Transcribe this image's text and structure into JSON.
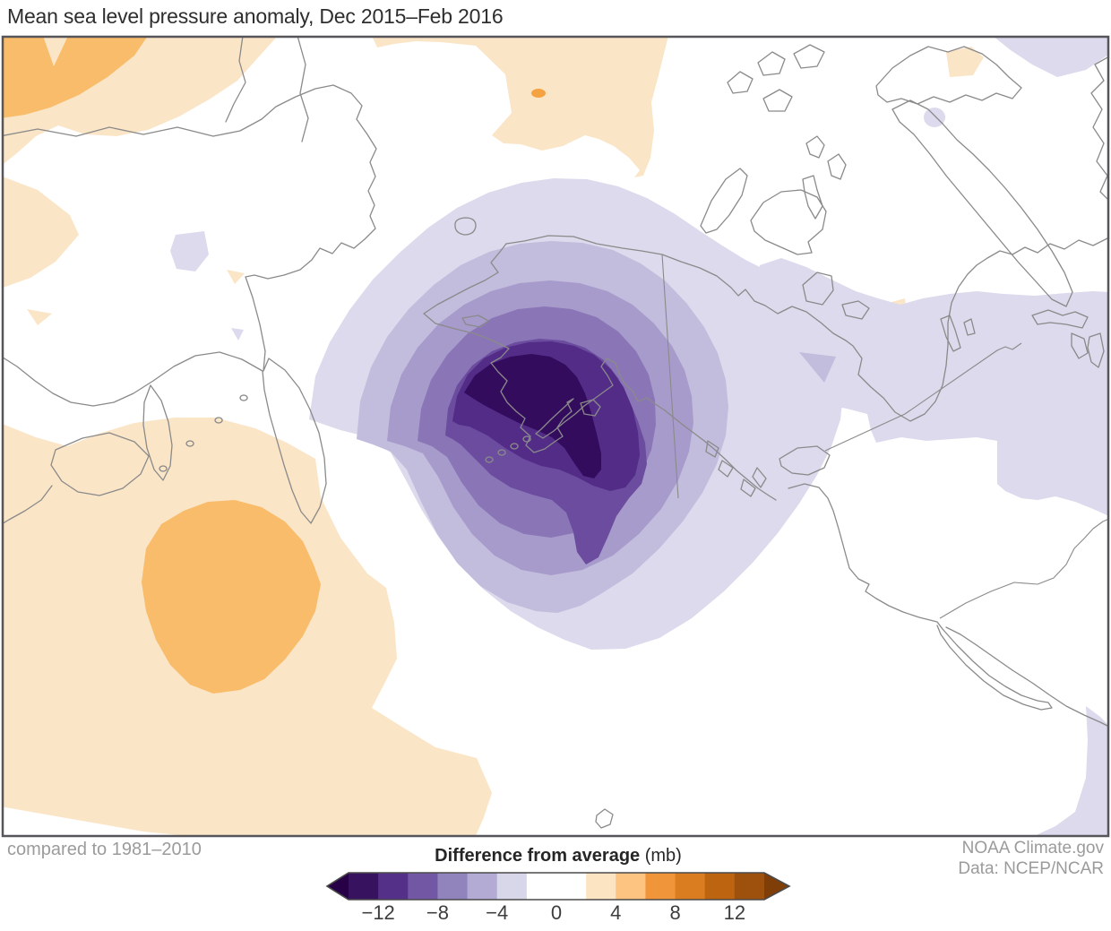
{
  "header": {
    "title": "Mean sea level pressure anomaly, Dec 2015–Feb 2016"
  },
  "footer": {
    "baseline_note": "compared to 1981–2010",
    "credit_line1": "NOAA Climate.gov",
    "credit_line2": "Data: NCEP/NCAR"
  },
  "legend": {
    "title_bold": "Difference from average",
    "title_unit": " (mb)",
    "tick_labels": [
      "−12",
      "−8",
      "−4",
      "0",
      "4",
      "8",
      "12"
    ],
    "tick_values": [
      -12,
      -8,
      -4,
      0,
      4,
      8,
      12
    ],
    "block_colors": [
      "#37125f",
      "#553089",
      "#7258a4",
      "#9184bc",
      "#b3abd3",
      "#d8d6e9",
      "#ffffff",
      "#ffffff",
      "#fce4c3",
      "#fdc380",
      "#f0953a",
      "#da7c20",
      "#bc6410",
      "#9e500d"
    ],
    "left_arrow_color": "#270047",
    "right_arrow_color": "#7f3d08",
    "outline_color": "#4a4a4a",
    "value_min": -14,
    "value_max": 14,
    "step_mb": 2
  },
  "map_palette": {
    "background": "#ffffff",
    "frame": "#55555a",
    "coastline": "#8a8a8a",
    "political_border": "#8a8a8a",
    "neg_levels": [
      "#dcdaec",
      "#c2bcdd",
      "#a79bcb",
      "#8a76b6",
      "#6b4c9e",
      "#522c87",
      "#330c5e"
    ],
    "pos_levels": [
      "#fbe5c7",
      "#f9bc6a"
    ],
    "pos_spot": "#f5a242"
  },
  "chart_data": {
    "type": "filled_contour_map",
    "title": "Mean sea level pressure anomaly, Dec 2015–Feb 2016",
    "variable": "Mean sea level pressure anomaly",
    "period": "Dec 2015–Feb 2016",
    "baseline": "1981–2010 average",
    "units": "mb",
    "region": "North Pacific, Alaska, Siberia and North America",
    "legend_title": "Difference from average (mb)",
    "colormap": "purple (negative) to orange (positive), white near zero",
    "contour_interval_mb": 2,
    "scale_range_mb": [
      -14,
      14
    ],
    "tick_values_mb": [
      -12,
      -8,
      -4,
      0,
      4,
      8,
      12
    ],
    "features": [
      {
        "feature": "Deep negative anomaly bullseye centered over the Gulf of Alaska / Alaska Peninsula",
        "value_mb": "below -14"
      },
      {
        "feature": "Broad weak negative anomaly (-2 to -4 mb) across western and central Canada to the Great Lakes",
        "value_mb": "-2 to -4"
      },
      {
        "feature": "Positive anomaly over the western North Pacific east of Japan with +4 to +6 mb core",
        "value_mb": "+2 to +6"
      },
      {
        "feature": "Weak positive anomaly band (+2 to +4 mb) along the Arctic edge over eastern Siberia",
        "value_mb": "+2 to +4"
      },
      {
        "feature": "Near-zero (white) anomaly over the contiguous U.S. West Coast, Bering Sea west of the low, and central Arctic islands",
        "value_mb": "-2 to +2"
      }
    ],
    "credit": "NOAA Climate.gov",
    "source": "Data: NCEP/NCAR"
  }
}
